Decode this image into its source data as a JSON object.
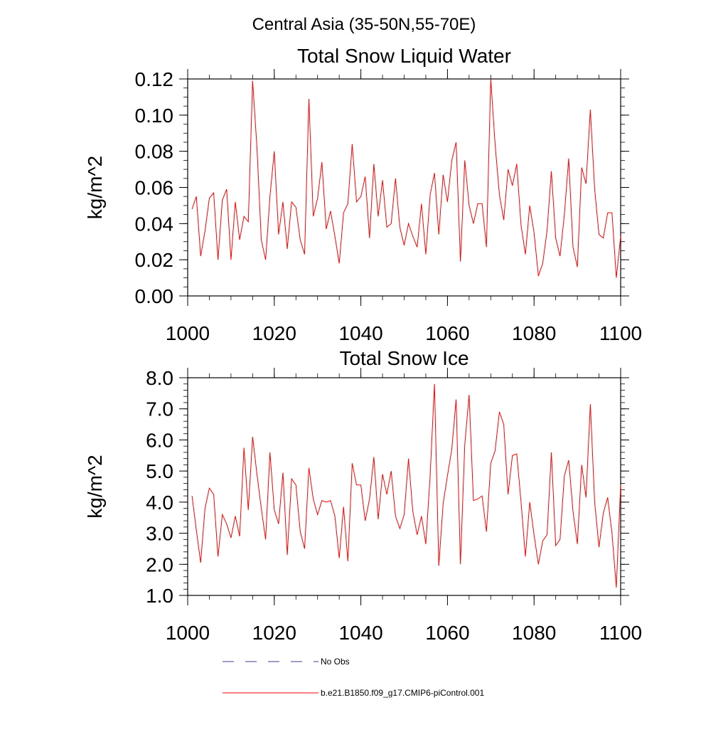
{
  "figure_title": "Central Asia (35-50N,55-70E)",
  "colors": {
    "model": "#ff0000",
    "obs": "#3b3b8f",
    "axis": "#000000"
  },
  "legend": [
    {
      "label": "No Obs",
      "style": "dashed",
      "color": "#3b3b8f"
    },
    {
      "label": "b.e21.B1850.f09_g17.CMIP6-piControl.001",
      "style": "solid",
      "color": "#ff0000"
    }
  ],
  "chart_data": [
    {
      "type": "line",
      "title": "Total Snow Liquid Water",
      "ylabel": "kg/m^2",
      "xlabel": "",
      "xlim": [
        1000,
        1100
      ],
      "ylim": [
        0.0,
        0.12
      ],
      "xticks": [
        1000,
        1020,
        1040,
        1060,
        1080,
        1100
      ],
      "xtick_labels": [
        "1000",
        "1020",
        "1040",
        "1060",
        "1080",
        "1100"
      ],
      "yticks": [
        0.0,
        0.02,
        0.04,
        0.06,
        0.08,
        0.1,
        0.12
      ],
      "ytick_labels": [
        "0.00",
        "0.02",
        "0.04",
        "0.06",
        "0.08",
        "0.10",
        "0.12"
      ],
      "yminor_step": 0.005,
      "xminor_step": 5,
      "grid": false,
      "series": [
        {
          "name": "b.e21.B1850.f09_g17.CMIP6-piControl.001",
          "x_start": 1001,
          "x_step": 1,
          "values": [
            0.048,
            0.055,
            0.022,
            0.036,
            0.054,
            0.057,
            0.02,
            0.053,
            0.059,
            0.02,
            0.052,
            0.031,
            0.044,
            0.041,
            0.119,
            0.082,
            0.031,
            0.02,
            0.055,
            0.08,
            0.034,
            0.052,
            0.026,
            0.052,
            0.049,
            0.031,
            0.023,
            0.109,
            0.044,
            0.054,
            0.074,
            0.037,
            0.047,
            0.033,
            0.018,
            0.046,
            0.051,
            0.084,
            0.052,
            0.055,
            0.066,
            0.032,
            0.073,
            0.044,
            0.064,
            0.038,
            0.04,
            0.065,
            0.038,
            0.028,
            0.04,
            0.033,
            0.027,
            0.051,
            0.023,
            0.056,
            0.068,
            0.034,
            0.067,
            0.052,
            0.075,
            0.085,
            0.019,
            0.075,
            0.05,
            0.04,
            0.051,
            0.051,
            0.027,
            0.12,
            0.084,
            0.056,
            0.042,
            0.07,
            0.061,
            0.073,
            0.039,
            0.023,
            0.05,
            0.035,
            0.011,
            0.018,
            0.036,
            0.069,
            0.032,
            0.022,
            0.045,
            0.076,
            0.027,
            0.016,
            0.071,
            0.062,
            0.103,
            0.059,
            0.034,
            0.032,
            0.046,
            0.046,
            0.01,
            0.033
          ]
        }
      ]
    },
    {
      "type": "line",
      "title": "Total Snow Ice",
      "ylabel": "kg/m^2",
      "xlabel": "",
      "xlim": [
        1000,
        1100
      ],
      "ylim": [
        1.0,
        8.0
      ],
      "xticks": [
        1000,
        1020,
        1040,
        1060,
        1080,
        1100
      ],
      "xtick_labels": [
        "1000",
        "1020",
        "1040",
        "1060",
        "1080",
        "1100"
      ],
      "yticks": [
        1.0,
        2.0,
        3.0,
        4.0,
        5.0,
        6.0,
        7.0,
        8.0
      ],
      "ytick_labels": [
        "1.0",
        "2.0",
        "3.0",
        "4.0",
        "5.0",
        "6.0",
        "7.0",
        "8.0"
      ],
      "yminor_step": 0.2,
      "xminor_step": 5,
      "grid": false,
      "series": [
        {
          "name": "b.e21.B1850.f09_g17.CMIP6-piControl.001",
          "x_start": 1001,
          "x_step": 1,
          "values": [
            4.2,
            3.1,
            2.05,
            3.8,
            4.45,
            4.25,
            2.25,
            3.6,
            3.3,
            2.85,
            3.55,
            2.9,
            5.75,
            3.75,
            6.1,
            4.9,
            3.8,
            2.8,
            5.6,
            3.75,
            3.3,
            4.95,
            2.3,
            4.75,
            4.55,
            3.05,
            2.5,
            5.1,
            4.1,
            3.6,
            4.05,
            4.0,
            4.05,
            3.55,
            2.2,
            3.85,
            2.1,
            5.25,
            4.55,
            4.55,
            3.4,
            4.1,
            5.45,
            3.45,
            4.9,
            4.25,
            5.0,
            3.55,
            3.15,
            3.6,
            5.4,
            3.7,
            2.95,
            3.55,
            2.65,
            4.85,
            7.8,
            1.95,
            3.95,
            4.85,
            5.7,
            7.3,
            2.0,
            5.85,
            7.45,
            4.05,
            4.1,
            4.2,
            3.05,
            5.25,
            5.65,
            6.9,
            6.5,
            4.25,
            5.5,
            5.55,
            4.0,
            2.25,
            4.0,
            2.95,
            2.0,
            2.75,
            2.95,
            5.6,
            2.6,
            2.8,
            4.85,
            5.35,
            3.7,
            2.65,
            5.2,
            4.15,
            7.15,
            4.0,
            2.55,
            3.65,
            4.15,
            3.0,
            1.25,
            4.55
          ]
        }
      ]
    }
  ]
}
